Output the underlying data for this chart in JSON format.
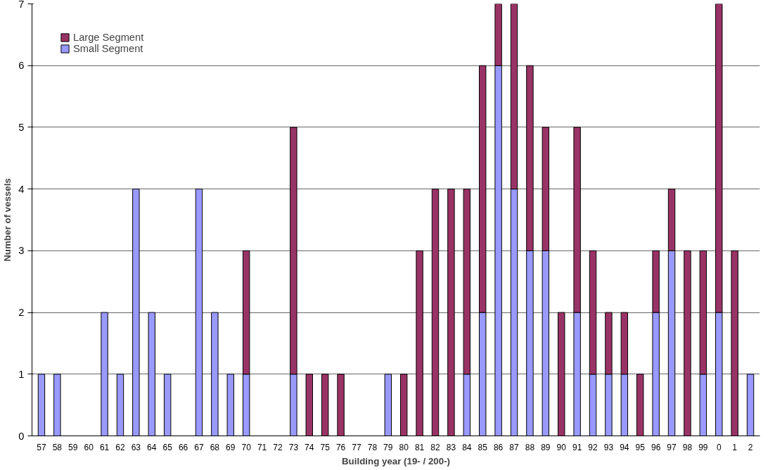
{
  "chart_data": {
    "type": "bar",
    "stacked": true,
    "xlabel": "Building year (19- / 200-)",
    "ylabel": "Number of vessels",
    "categories": [
      "57",
      "58",
      "59",
      "60",
      "61",
      "62",
      "63",
      "64",
      "65",
      "66",
      "67",
      "68",
      "69",
      "70",
      "71",
      "72",
      "73",
      "74",
      "75",
      "76",
      "77",
      "78",
      "79",
      "80",
      "81",
      "82",
      "83",
      "84",
      "85",
      "86",
      "87",
      "88",
      "89",
      "90",
      "91",
      "92",
      "93",
      "94",
      "95",
      "96",
      "97",
      "98",
      "99",
      "0",
      "1",
      "2"
    ],
    "series": [
      {
        "name": "Small Segment",
        "color": "#9999ff",
        "values": [
          1,
          1,
          0,
          0,
          2,
          1,
          4,
          2,
          1,
          0,
          4,
          2,
          1,
          1,
          0,
          0,
          1,
          0,
          0,
          0,
          0,
          0,
          1,
          0,
          0,
          0,
          0,
          1,
          2,
          6,
          4,
          3,
          3,
          0,
          2,
          1,
          1,
          1,
          0,
          2,
          3,
          0,
          1,
          2,
          0,
          1
        ]
      },
      {
        "name": "Large Segment",
        "color": "#993366",
        "values": [
          0,
          0,
          0,
          0,
          0,
          0,
          0,
          0,
          0,
          0,
          0,
          0,
          0,
          2,
          0,
          0,
          4,
          1,
          1,
          1,
          0,
          0,
          0,
          1,
          3,
          4,
          4,
          3,
          4,
          1,
          3,
          3,
          2,
          2,
          3,
          2,
          1,
          1,
          1,
          1,
          1,
          3,
          2,
          5,
          3,
          0
        ]
      }
    ],
    "ylim": [
      0,
      7
    ],
    "yticks": [
      0,
      1,
      2,
      3,
      4,
      5,
      6,
      7
    ],
    "grid": "y",
    "legend": "top left"
  }
}
